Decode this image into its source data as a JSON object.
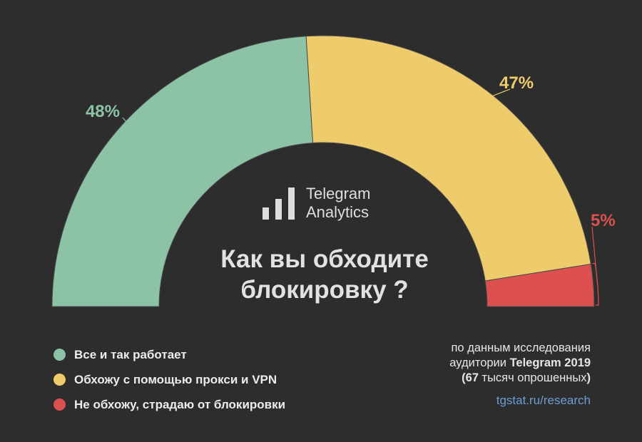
{
  "chart_data": {
    "type": "pie",
    "variant": "half-donut",
    "title": "Как вы обходите блокировку ?",
    "categories": [
      "Все и так работает",
      "Обхожу с помощью прокси и VPN",
      "Не обхожу, страдаю от блокировки"
    ],
    "values": [
      48,
      47,
      5
    ],
    "data_labels": [
      "48%",
      "47%",
      "5%"
    ],
    "colors": [
      "#8cc3a6",
      "#eecb6b",
      "#dc5050"
    ],
    "legend_position": "bottom-left"
  },
  "logo": {
    "line1": "Telegram",
    "line2": "Analytics"
  },
  "source": {
    "line1": "по данным исследования",
    "line2_prefix": "аудитории ",
    "line2_bold": "Telegram 2019",
    "line3_open": "(",
    "line3_bold": "67",
    "line3_rest": " тысяч опрошенных",
    "line3_close": ")"
  },
  "link": "tgstat.ru/research"
}
